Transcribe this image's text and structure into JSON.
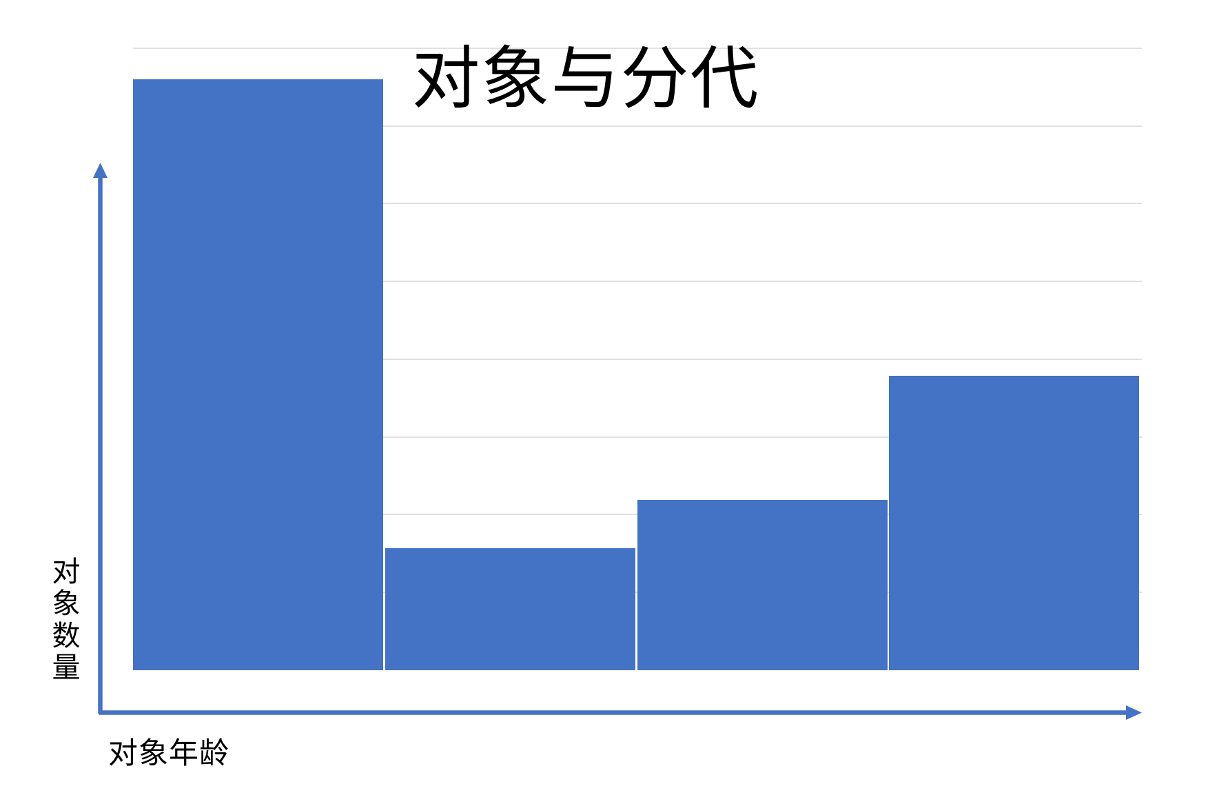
{
  "page": {
    "background_color": "#FFFFFF"
  },
  "chart_data": {
    "type": "bar",
    "title": "对象与分代",
    "xlabel": "对象年龄",
    "ylabel": "对象数量",
    "categories": [
      "",
      "",
      "",
      ""
    ],
    "values": [
      7.6,
      1.57,
      2.19,
      3.79
    ],
    "values_note": "no numeric tick labels shown; values estimated in horizontal-gridline units measured from the bar baseline",
    "ylim": [
      0,
      8
    ],
    "x_tick_labels": [],
    "y_tick_labels": [],
    "grid": "horizontal gridlines on",
    "gridline_count": 8,
    "legend": "none",
    "axes_style": "blue arrows pointing up (y) and right (x)",
    "colors": {
      "bar": "#4472C4",
      "axis_arrow": "#4472C4",
      "gridline": "#E0E0E0",
      "title_text": "#000000",
      "label_text": "#000000"
    }
  }
}
